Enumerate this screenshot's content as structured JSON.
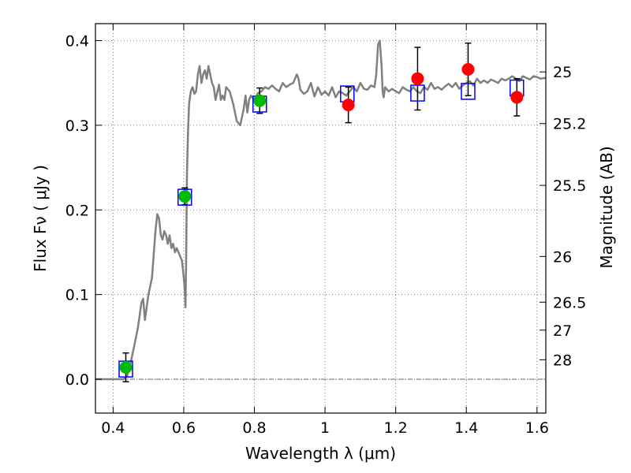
{
  "chart_data": {
    "type": "scatter",
    "xlabel": "Wavelength  λ (μm)",
    "ylabel": "Flux  Fν  ( μJy )",
    "y2label": "Magnitude (AB)",
    "xlim": [
      0.35,
      1.625
    ],
    "ylim": [
      -0.04,
      0.42
    ],
    "grid": true,
    "xticks": [
      0.4,
      0.6,
      0.8,
      1.0,
      1.2,
      1.4,
      1.6
    ],
    "xtick_labels": [
      "0.4",
      "0.6",
      "0.8",
      "1",
      "1.2",
      "1.4",
      "1.6"
    ],
    "yticks": [
      0.0,
      0.1,
      0.2,
      0.3,
      0.4
    ],
    "ytick_labels": [
      "0.0",
      "0.1",
      "0.2",
      "0.3",
      "0.4"
    ],
    "magnitude_ticks": [
      {
        "label": "25",
        "flux": 0.363
      },
      {
        "label": "25.2",
        "flux": 0.302
      },
      {
        "label": "25.5",
        "flux": 0.229
      },
      {
        "label": "26",
        "flux": 0.145
      },
      {
        "label": "26.5",
        "flux": 0.091
      },
      {
        "label": "27",
        "flux": 0.058
      },
      {
        "label": "28",
        "flux": 0.023
      }
    ],
    "colors": {
      "spectrum": "#808080",
      "model_box": "#0000ff",
      "observed_green": "#00bb00",
      "observed_red": "#ff0000",
      "errorbar": "#000000",
      "zero_line": "#555555"
    },
    "series": [
      {
        "kind": "spectrum",
        "x": [
          0.35,
          0.43,
          0.44,
          0.45,
          0.46,
          0.47,
          0.475,
          0.48,
          0.485,
          0.49,
          0.5,
          0.51,
          0.52,
          0.525,
          0.53,
          0.535,
          0.54,
          0.545,
          0.55,
          0.555,
          0.56,
          0.565,
          0.57,
          0.575,
          0.58,
          0.585,
          0.59,
          0.595,
          0.6,
          0.603,
          0.605,
          0.607,
          0.609,
          0.612,
          0.615,
          0.62,
          0.625,
          0.63,
          0.635,
          0.64,
          0.645,
          0.65,
          0.655,
          0.66,
          0.665,
          0.67,
          0.675,
          0.68,
          0.685,
          0.69,
          0.7,
          0.705,
          0.71,
          0.715,
          0.72,
          0.73,
          0.74,
          0.75,
          0.76,
          0.77,
          0.775,
          0.78,
          0.785,
          0.79,
          0.8,
          0.81,
          0.82,
          0.83,
          0.84,
          0.85,
          0.86,
          0.87,
          0.88,
          0.89,
          0.9,
          0.91,
          0.92,
          0.925,
          0.93,
          0.94,
          0.95,
          0.96,
          0.97,
          0.98,
          0.99,
          1.0,
          1.01,
          1.02,
          1.03,
          1.04,
          1.05,
          1.06,
          1.07,
          1.08,
          1.09,
          1.1,
          1.11,
          1.12,
          1.13,
          1.14,
          1.145,
          1.15,
          1.155,
          1.16,
          1.163,
          1.166,
          1.17,
          1.18,
          1.19,
          1.2,
          1.21,
          1.22,
          1.23,
          1.24,
          1.25,
          1.26,
          1.27,
          1.28,
          1.29,
          1.3,
          1.31,
          1.32,
          1.33,
          1.34,
          1.35,
          1.36,
          1.37,
          1.38,
          1.39,
          1.4,
          1.41,
          1.42,
          1.43,
          1.44,
          1.45,
          1.46,
          1.47,
          1.48,
          1.49,
          1.5,
          1.51,
          1.52,
          1.53,
          1.54,
          1.55,
          1.56,
          1.57,
          1.58,
          1.59,
          1.6,
          1.61,
          1.625
        ],
        "y": [
          0.0,
          0.0,
          0.004,
          0.02,
          0.04,
          0.06,
          0.075,
          0.09,
          0.095,
          0.07,
          0.1,
          0.12,
          0.175,
          0.195,
          0.19,
          0.17,
          0.165,
          0.175,
          0.17,
          0.16,
          0.17,
          0.155,
          0.16,
          0.15,
          0.155,
          0.15,
          0.145,
          0.14,
          0.12,
          0.105,
          0.085,
          0.15,
          0.24,
          0.29,
          0.325,
          0.34,
          0.345,
          0.337,
          0.34,
          0.36,
          0.37,
          0.35,
          0.36,
          0.365,
          0.355,
          0.37,
          0.36,
          0.35,
          0.345,
          0.33,
          0.348,
          0.33,
          0.335,
          0.33,
          0.345,
          0.34,
          0.325,
          0.305,
          0.3,
          0.32,
          0.335,
          0.315,
          0.33,
          0.335,
          0.33,
          0.338,
          0.34,
          0.345,
          0.343,
          0.347,
          0.343,
          0.34,
          0.35,
          0.345,
          0.348,
          0.35,
          0.36,
          0.355,
          0.342,
          0.337,
          0.34,
          0.35,
          0.334,
          0.345,
          0.336,
          0.34,
          0.335,
          0.345,
          0.333,
          0.34,
          0.338,
          0.335,
          0.34,
          0.345,
          0.34,
          0.35,
          0.343,
          0.342,
          0.347,
          0.345,
          0.36,
          0.395,
          0.4,
          0.37,
          0.34,
          0.333,
          0.345,
          0.34,
          0.343,
          0.34,
          0.338,
          0.345,
          0.342,
          0.34,
          0.345,
          0.34,
          0.338,
          0.345,
          0.342,
          0.35,
          0.343,
          0.345,
          0.342,
          0.346,
          0.349,
          0.345,
          0.35,
          0.343,
          0.347,
          0.35,
          0.352,
          0.347,
          0.355,
          0.35,
          0.353,
          0.35,
          0.354,
          0.352,
          0.35,
          0.355,
          0.353,
          0.355,
          0.358,
          0.355,
          0.352,
          0.358,
          0.356,
          0.354,
          0.358,
          0.357,
          0.355,
          0.356
        ]
      },
      {
        "kind": "model_boxes",
        "x": [
          0.436,
          0.603,
          0.815,
          1.063,
          1.262,
          1.405,
          1.543
        ],
        "y": [
          0.012,
          0.215,
          0.325,
          0.337,
          0.338,
          0.34,
          0.344
        ]
      },
      {
        "kind": "observed_green",
        "x": [
          0.436,
          0.603,
          0.815
        ],
        "y": [
          0.014,
          0.216,
          0.329
        ],
        "yerr": [
          0.017,
          0.01,
          0.015
        ]
      },
      {
        "kind": "observed_red",
        "x": [
          1.066,
          1.262,
          1.405,
          1.543
        ],
        "y": [
          0.324,
          0.355,
          0.366,
          0.333
        ],
        "yerr": [
          0.021,
          0.037,
          0.031,
          0.022
        ]
      }
    ]
  }
}
